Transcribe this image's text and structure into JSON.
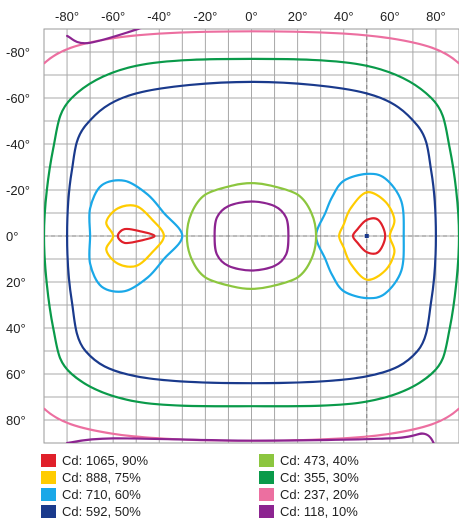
{
  "chart_data": {
    "type": "isocandela contour",
    "title": "",
    "xlabel": "",
    "ylabel": "",
    "xlim": [
      -90,
      90
    ],
    "ylim": [
      -90,
      90
    ],
    "x_ticks": [
      -80,
      -60,
      -40,
      -20,
      0,
      20,
      40,
      60,
      80
    ],
    "y_ticks": [
      -80,
      -60,
      -40,
      -20,
      0,
      20,
      40,
      60,
      80
    ],
    "x_tick_labels": [
      "-80°",
      "-60°",
      "-40°",
      "-20°",
      "0°",
      "20°",
      "40°",
      "60°",
      "80°"
    ],
    "y_tick_labels": [
      "-80°",
      "-60°",
      "-40°",
      "-20°",
      "0°",
      "20°",
      "40°",
      "60°",
      "80°"
    ],
    "grid": true,
    "y_axis_direction": "down",
    "peak_marker": [
      50,
      0
    ],
    "series": [
      {
        "name": "Cd: 1065, 90%",
        "color": "#e0202a",
        "rings": [
          [
            [
              -58,
              0
            ],
            [
              -55,
              -3
            ],
            [
              -48,
              -2
            ],
            [
              -42,
              0
            ],
            [
              -48,
              2
            ],
            [
              -55,
              3
            ]
          ],
          [
            [
              58,
              0
            ],
            [
              55,
              -7
            ],
            [
              50,
              -7
            ],
            [
              46,
              -3
            ],
            [
              44,
              0
            ],
            [
              46,
              3
            ],
            [
              50,
              7
            ],
            [
              55,
              7
            ]
          ]
        ]
      },
      {
        "name": "Cd: 888, 75%",
        "color": "#ffcc00",
        "rings": [
          [
            [
              -60,
              0
            ],
            [
              -63,
              -6
            ],
            [
              -58,
              -12
            ],
            [
              -50,
              -13
            ],
            [
              -43,
              -7
            ],
            [
              -38,
              0
            ],
            [
              -43,
              7
            ],
            [
              -50,
              13
            ],
            [
              -58,
              12
            ],
            [
              -63,
              6
            ]
          ],
          [
            [
              60,
              0
            ],
            [
              62,
              -7
            ],
            [
              58,
              -15
            ],
            [
              50,
              -19
            ],
            [
              43,
              -12
            ],
            [
              40,
              -5
            ],
            [
              38,
              0
            ],
            [
              40,
              5
            ],
            [
              43,
              12
            ],
            [
              50,
              19
            ],
            [
              58,
              15
            ],
            [
              62,
              7
            ]
          ]
        ]
      },
      {
        "name": "Cd: 710, 60%",
        "color": "#1aa8e8",
        "rings": [
          [
            [
              -70,
              0
            ],
            [
              -70,
              -12
            ],
            [
              -65,
              -22
            ],
            [
              -55,
              -24
            ],
            [
              -45,
              -18
            ],
            [
              -38,
              -10
            ],
            [
              -30,
              0
            ],
            [
              -38,
              10
            ],
            [
              -45,
              18
            ],
            [
              -55,
              24
            ],
            [
              -65,
              22
            ],
            [
              -70,
              12
            ]
          ],
          [
            [
              66,
              0
            ],
            [
              65,
              -15
            ],
            [
              58,
              -25
            ],
            [
              50,
              -27
            ],
            [
              40,
              -24
            ],
            [
              35,
              -17
            ],
            [
              32,
              -10
            ],
            [
              28,
              0
            ],
            [
              32,
              10
            ],
            [
              35,
              17
            ],
            [
              40,
              24
            ],
            [
              50,
              27
            ],
            [
              58,
              25
            ],
            [
              65,
              15
            ]
          ]
        ]
      },
      {
        "name": "Cd: 592, 50%",
        "color": "#1a3a8c",
        "rings": [
          [
            [
              -80,
              0
            ],
            [
              -78,
              -28
            ],
            [
              -72,
              -48
            ],
            [
              -50,
              -62
            ],
            [
              0,
              -67
            ],
            [
              50,
              -62
            ],
            [
              72,
              -48
            ],
            [
              78,
              -28
            ],
            [
              80,
              0
            ],
            [
              78,
              28
            ],
            [
              72,
              50
            ],
            [
              50,
              61
            ],
            [
              0,
              64
            ],
            [
              -50,
              61
            ],
            [
              -72,
              50
            ],
            [
              -78,
              28
            ]
          ]
        ]
      },
      {
        "name": "Cd: 473, 40%",
        "color": "#8cc63f",
        "rings": [
          [
            [
              -28,
              0
            ],
            [
              -26,
              -10
            ],
            [
              -20,
              -18
            ],
            [
              -8,
              -22
            ],
            [
              0,
              -23
            ],
            [
              8,
              -22
            ],
            [
              20,
              -18
            ],
            [
              26,
              -10
            ],
            [
              28,
              0
            ],
            [
              26,
              10
            ],
            [
              20,
              18
            ],
            [
              8,
              22
            ],
            [
              0,
              23
            ],
            [
              -8,
              22
            ],
            [
              -20,
              18
            ],
            [
              -26,
              10
            ]
          ]
        ]
      },
      {
        "name": "Cd: 355, 30%",
        "color": "#0a9a4a",
        "rings": [
          [
            [
              -90,
              0
            ],
            [
              -86,
              -38
            ],
            [
              -78,
              -60
            ],
            [
              -50,
              -74
            ],
            [
              0,
              -77
            ],
            [
              50,
              -74
            ],
            [
              78,
              -60
            ],
            [
              86,
              -38
            ],
            [
              90,
              0
            ],
            [
              86,
              40
            ],
            [
              78,
              60
            ],
            [
              50,
              72
            ],
            [
              0,
              74
            ],
            [
              -50,
              72
            ],
            [
              -78,
              60
            ],
            [
              -86,
              40
            ]
          ]
        ]
      },
      {
        "name": "Cd: 237, 20%",
        "color": "#ec6fa0",
        "rings": [
          [
            [
              -100,
              0
            ],
            [
              -98,
              -50
            ],
            [
              -90,
              -75
            ],
            [
              -60,
              -86
            ],
            [
              0,
              -89
            ],
            [
              60,
              -86
            ],
            [
              90,
              -75
            ],
            [
              98,
              -50
            ],
            [
              100,
              0
            ],
            [
              98,
              50
            ],
            [
              90,
              75
            ],
            [
              60,
              86
            ],
            [
              0,
              89
            ],
            [
              -60,
              86
            ],
            [
              -90,
              75
            ],
            [
              -98,
              50
            ]
          ]
        ]
      },
      {
        "name": "Cd: 118, 10%",
        "color": "#8c2490",
        "rings": [
          [
            [
              -16,
              0
            ],
            [
              -15,
              -8
            ],
            [
              -10,
              -13
            ],
            [
              0,
              -15
            ],
            [
              10,
              -13
            ],
            [
              15,
              -8
            ],
            [
              16,
              0
            ],
            [
              15,
              8
            ],
            [
              10,
              13
            ],
            [
              0,
              15
            ],
            [
              -10,
              13
            ],
            [
              -15,
              8
            ]
          ]
        ],
        "open_paths": [
          [
            [
              -80,
              -87
            ],
            [
              -70,
              -84
            ],
            [
              -40,
              -93
            ]
          ],
          [
            [
              -80,
              90
            ],
            [
              -60,
              88
            ],
            [
              0,
              89
            ],
            [
              60,
              88
            ],
            [
              75,
              86
            ],
            [
              80,
              92
            ]
          ]
        ]
      }
    ]
  }
}
